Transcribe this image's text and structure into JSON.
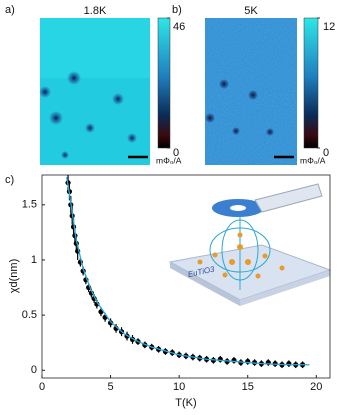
{
  "chart_data": [
    {
      "type": "heatmap",
      "panel_label": "a)",
      "title": "1.8K",
      "clim": [
        0,
        46
      ],
      "cticks": [
        0,
        46
      ],
      "colorbar_label": "mΦ₀/A"
    },
    {
      "type": "heatmap",
      "panel_label": "b)",
      "title": "5K",
      "clim": [
        0,
        12
      ],
      "cticks": [
        0,
        12
      ],
      "colorbar_label": "mΦ₀/A"
    },
    {
      "type": "scatter",
      "panel_label": "c)",
      "xlabel": "T(K)",
      "ylabel": "χd(nm)",
      "xlim": [
        0,
        21
      ],
      "ylim": [
        -0.07,
        1.77
      ],
      "xticks": [
        0,
        5,
        10,
        15,
        20
      ],
      "yticks": [
        0,
        0.5,
        1,
        1.5
      ],
      "annotation": "EuTiO3",
      "series": [
        {
          "color": "#000000",
          "x": [
            1.9,
            2.0,
            2.1,
            2.2,
            2.3,
            2.4,
            2.5,
            2.6,
            2.8,
            3.0,
            3.2,
            3.4,
            3.6,
            3.8,
            4.0,
            4.3,
            4.6,
            5.0,
            5.4,
            5.8,
            6.2,
            6.6,
            7.0,
            7.5,
            8.0,
            8.5,
            9.0,
            9.5,
            10.0,
            10.5,
            11.0,
            11.5,
            12,
            12.5,
            13,
            13.5,
            14,
            14.5,
            15,
            15.5,
            16,
            16.5,
            17,
            17.5,
            18,
            18.5,
            19
          ],
          "values": [
            1.7,
            1.62,
            1.5,
            1.4,
            1.3,
            1.22,
            1.15,
            1.08,
            0.98,
            0.9,
            0.82,
            0.75,
            0.7,
            0.65,
            0.6,
            0.53,
            0.48,
            0.43,
            0.38,
            0.35,
            0.31,
            0.28,
            0.26,
            0.23,
            0.21,
            0.19,
            0.17,
            0.16,
            0.14,
            0.13,
            0.12,
            0.11,
            0.1,
            0.09,
            0.1,
            0.08,
            0.09,
            0.07,
            0.08,
            0.07,
            0.06,
            0.07,
            0.06,
            0.05,
            0.06,
            0.05,
            0.05
          ],
          "errors": [
            0.08,
            0.08,
            0.08,
            0.08,
            0.08,
            0.08,
            0.08,
            0.08,
            0.04,
            0.04,
            0.04,
            0.04,
            0.04,
            0.04,
            0.04,
            0.04,
            0.04,
            0.04,
            0.04,
            0.04,
            0.04,
            0.04,
            0.03,
            0.03,
            0.03,
            0.03,
            0.03,
            0.03,
            0.03,
            0.03,
            0.03,
            0.03,
            0.03,
            0.03,
            0.03,
            0.03,
            0.03,
            0.03,
            0.03,
            0.03,
            0.03,
            0.03,
            0.03,
            0.03,
            0.03,
            0.03,
            0.03
          ]
        }
      ],
      "fit": {
        "color": "#29a9d6",
        "x": [
          1.8,
          2,
          2.5,
          3,
          3.5,
          4,
          5,
          6,
          7,
          8,
          10,
          12,
          14,
          16,
          18,
          19.5
        ],
        "values": [
          1.75,
          1.6,
          1.18,
          0.92,
          0.75,
          0.62,
          0.44,
          0.33,
          0.26,
          0.21,
          0.14,
          0.1,
          0.08,
          0.06,
          0.05,
          0.05
        ]
      }
    }
  ]
}
